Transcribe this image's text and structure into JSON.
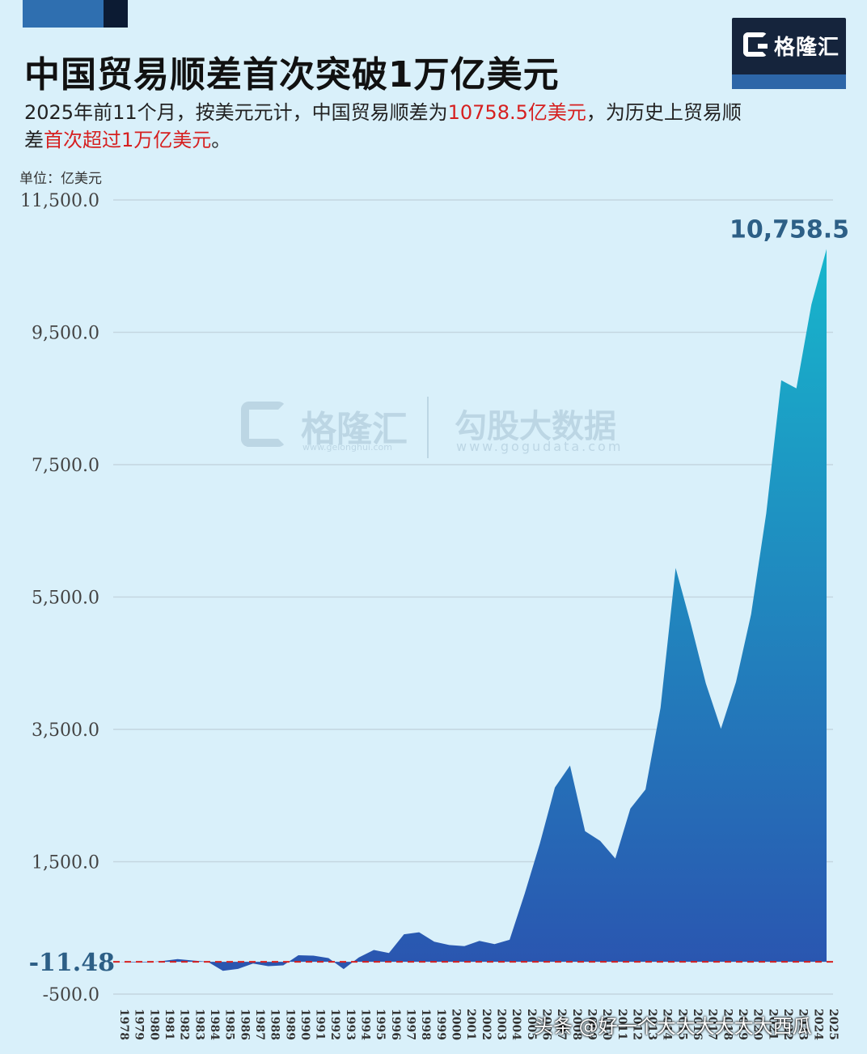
{
  "header": {
    "title": "中国贸易顺差首次突破1万亿美元",
    "subtitle_part1": "2025年前11个月，按美元元计，中国贸易顺差为",
    "subtitle_highlight1": "10758.5亿美元",
    "subtitle_part2": "，为历史上贸易顺差",
    "subtitle_highlight2": "首次超过1万亿美元",
    "subtitle_part3": "。",
    "unit": "单位：亿美元"
  },
  "logo": {
    "name": "格隆汇"
  },
  "watermark": {
    "brand1": "格隆汇",
    "url1": "www.gelonghui.com",
    "brand2": "勾股大数据",
    "url2": "www.gogudata.com"
  },
  "footer": {
    "text": "头条 @好一个大大大大大大西瓜"
  },
  "colors": {
    "fill_top": "#17b6cc",
    "fill_bottom": "#2a55b0",
    "highlight": "#d62020",
    "zero_line": "#d62020",
    "callout": "#2d5f86"
  },
  "chart_data": {
    "type": "area",
    "title": "中国贸易顺差首次突破1万亿美元",
    "ylabel": "单位：亿美元",
    "ylim": [
      -500,
      11500
    ],
    "yticks": [
      -500,
      1500,
      3500,
      5500,
      7500,
      9500,
      11500
    ],
    "ytick_labels": [
      "-500.0",
      "1,500.0",
      "3,500.0",
      "5,500.0",
      "7,500.0",
      "9,500.0",
      "11,500.0"
    ],
    "grid": true,
    "x": [
      "1978",
      "1979",
      "1980",
      "1981",
      "1982",
      "1983",
      "1984",
      "1985",
      "1986",
      "1987",
      "1988",
      "1989",
      "1990",
      "1991",
      "1992",
      "1993",
      "1994",
      "1995",
      "1996",
      "1997",
      "1998",
      "1999",
      "2000",
      "2001",
      "2002",
      "2003",
      "2004",
      "2005",
      "2006",
      "2007",
      "2008",
      "2009",
      "2010",
      "2011",
      "2012",
      "2013",
      "2014",
      "2015",
      "2016",
      "2017",
      "2018",
      "2019",
      "2020",
      "2021",
      "2022",
      "2023",
      "2024",
      "2025"
    ],
    "values": [
      -11.48,
      -20,
      -19,
      0,
      30,
      8,
      -12,
      -149,
      -120,
      -38,
      -78,
      -66,
      87,
      81,
      44,
      -122,
      54,
      167,
      122,
      404,
      434,
      292,
      241,
      225,
      304,
      255,
      321,
      1020,
      1775,
      2622,
      2955,
      1961,
      1815,
      1549,
      2303,
      2592,
      3825,
      5939,
      5100,
      4196,
      3509,
      4215,
      5240,
      6764,
      8776,
      8653,
      9922,
      10758.5
    ],
    "series": [
      {
        "name": "",
        "values": "see values"
      }
    ],
    "annotations": [
      {
        "label": "10,758.5",
        "x": "2025",
        "y": 10758.5
      },
      {
        "label": "-11.48",
        "x": "1978",
        "y": -11.48
      }
    ]
  }
}
